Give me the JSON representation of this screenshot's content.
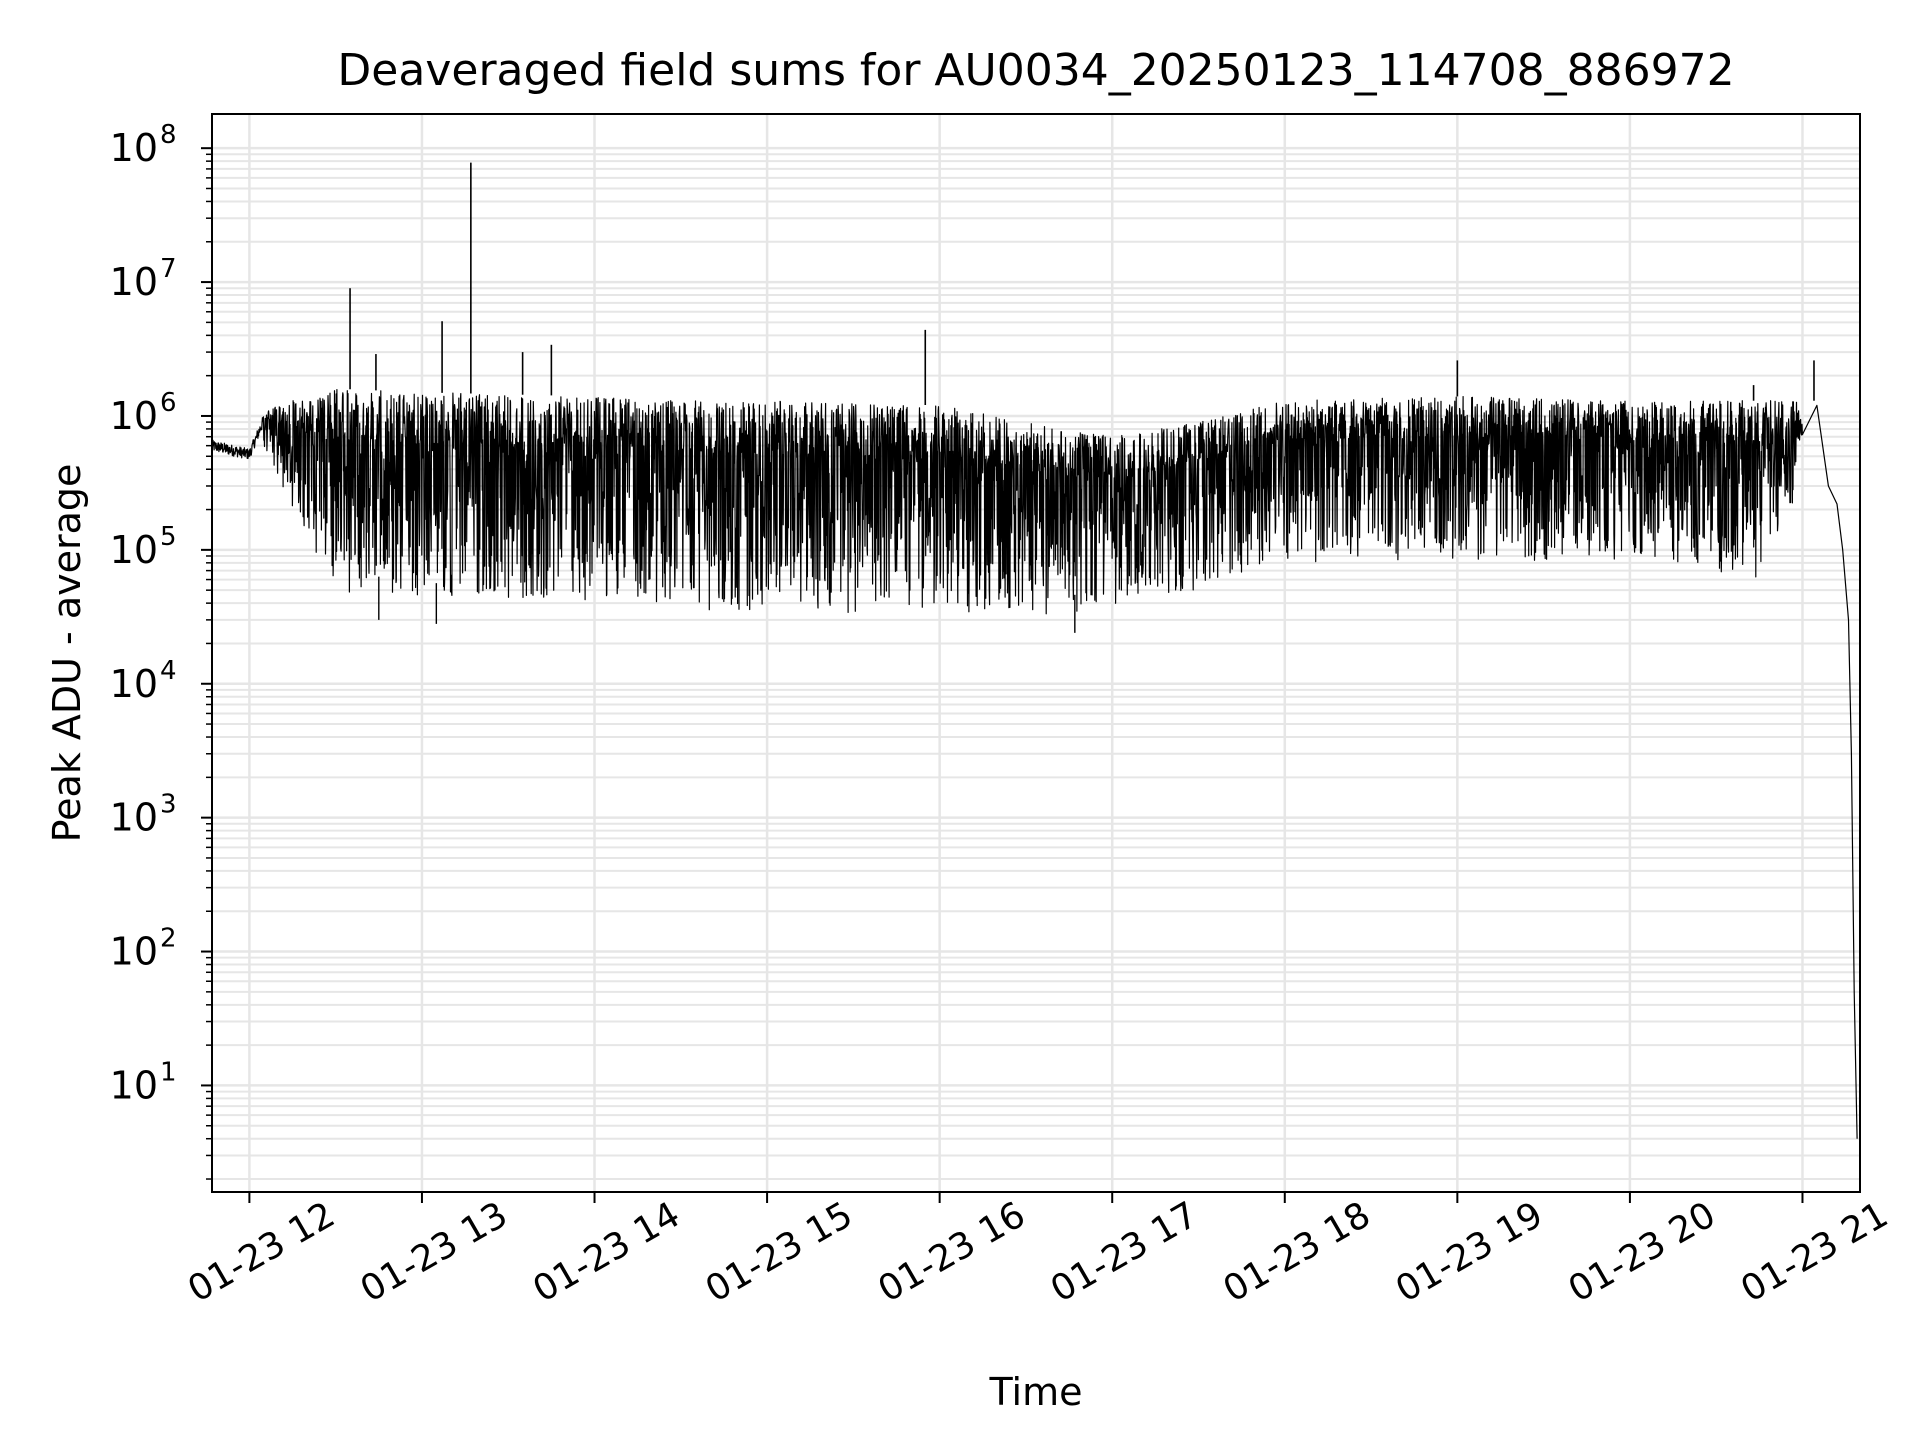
{
  "chart_data": {
    "type": "line",
    "title": "Deaveraged field sums for AU0034_20250123_114708_886972",
    "xlabel": "Time",
    "ylabel": "Peak ADU - average",
    "yscale": "log",
    "ylim": [
      1.6,
      180000000
    ],
    "xlim": [
      "01-23 11:47",
      "01-23 21:20"
    ],
    "grid": true,
    "grid_minor": true,
    "x_ticks": [
      {
        "t": "01-23 12:00",
        "label": "01-23 12"
      },
      {
        "t": "01-23 13:00",
        "label": "01-23 13"
      },
      {
        "t": "01-23 14:00",
        "label": "01-23 14"
      },
      {
        "t": "01-23 15:00",
        "label": "01-23 15"
      },
      {
        "t": "01-23 16:00",
        "label": "01-23 16"
      },
      {
        "t": "01-23 17:00",
        "label": "01-23 17"
      },
      {
        "t": "01-23 18:00",
        "label": "01-23 18"
      },
      {
        "t": "01-23 19:00",
        "label": "01-23 19"
      },
      {
        "t": "01-23 20:00",
        "label": "01-23 20"
      },
      {
        "t": "01-23 21:00",
        "label": "01-23 21"
      }
    ],
    "y_ticks": [
      {
        "value": 10,
        "base": "10",
        "exp": "1"
      },
      {
        "value": 100,
        "base": "10",
        "exp": "2"
      },
      {
        "value": 1000,
        "base": "10",
        "exp": "3"
      },
      {
        "value": 10000,
        "base": "10",
        "exp": "4"
      },
      {
        "value": 100000,
        "base": "10",
        "exp": "5"
      },
      {
        "value": 1000000,
        "base": "10",
        "exp": "6"
      },
      {
        "value": 10000000,
        "base": "10",
        "exp": "7"
      },
      {
        "value": 100000000,
        "base": "10",
        "exp": "8"
      }
    ],
    "line_color": "#000000",
    "grid_color": "#e6e6e6",
    "series": [
      {
        "envelope": [
          {
            "t": "01-23 11:47",
            "low": 400000,
            "high": 700000
          },
          {
            "t": "01-23 12:00",
            "low": 350000,
            "high": 600000
          },
          {
            "t": "01-23 12:05",
            "low": 600000,
            "high": 1100000
          },
          {
            "t": "01-23 12:15",
            "low": 200000,
            "high": 1300000
          },
          {
            "t": "01-23 12:30",
            "low": 50000,
            "high": 1600000
          },
          {
            "t": "01-23 13:00",
            "low": 40000,
            "high": 1500000
          },
          {
            "t": "01-23 14:00",
            "low": 40000,
            "high": 1400000
          },
          {
            "t": "01-23 14:30",
            "low": 32000,
            "high": 1300000
          },
          {
            "t": "01-23 15:00",
            "low": 32000,
            "high": 1300000
          },
          {
            "t": "01-23 16:00",
            "low": 35000,
            "high": 1200000
          },
          {
            "t": "01-23 16:30",
            "low": 30000,
            "high": 900000
          },
          {
            "t": "01-23 17:00",
            "low": 35000,
            "high": 700000
          },
          {
            "t": "01-23 17:30",
            "low": 50000,
            "high": 900000
          },
          {
            "t": "01-23 18:00",
            "low": 80000,
            "high": 1300000
          },
          {
            "t": "01-23 19:00",
            "low": 80000,
            "high": 1400000
          },
          {
            "t": "01-23 20:00",
            "low": 80000,
            "high": 1300000
          },
          {
            "t": "01-23 20:45",
            "low": 60000,
            "high": 1300000
          },
          {
            "t": "01-23 21:00",
            "low": 300000,
            "high": 1300000
          }
        ],
        "spikes": [
          {
            "t": "01-23 12:35",
            "value": 9000000
          },
          {
            "t": "01-23 12:44",
            "value": 2900000
          },
          {
            "t": "01-23 13:07",
            "value": 5100000
          },
          {
            "t": "01-23 13:17",
            "value": 78000000
          },
          {
            "t": "01-23 13:35",
            "value": 3000000
          },
          {
            "t": "01-23 13:45",
            "value": 3400000
          },
          {
            "t": "01-23 15:55",
            "value": 4400000
          },
          {
            "t": "01-23 19:00",
            "value": 2600000
          },
          {
            "t": "01-23 20:43",
            "value": 1700000
          },
          {
            "t": "01-23 21:04",
            "value": 2600000
          }
        ],
        "dips": [
          {
            "t": "01-23 12:45",
            "value": 30000
          },
          {
            "t": "01-23 13:05",
            "value": 28000
          },
          {
            "t": "01-23 16:47",
            "value": 24000
          }
        ],
        "tail": [
          {
            "t": "01-23 21:05",
            "value": 1200000
          },
          {
            "t": "01-23 21:09",
            "value": 300000
          },
          {
            "t": "01-23 21:12",
            "value": 220000
          },
          {
            "t": "01-23 21:14",
            "value": 100000
          },
          {
            "t": "01-23 21:16",
            "value": 30000
          },
          {
            "t": "01-23 21:17",
            "value": 3000
          },
          {
            "t": "01-23 21:18",
            "value": 50
          },
          {
            "t": "01-23 21:19",
            "value": 4
          }
        ]
      }
    ]
  }
}
